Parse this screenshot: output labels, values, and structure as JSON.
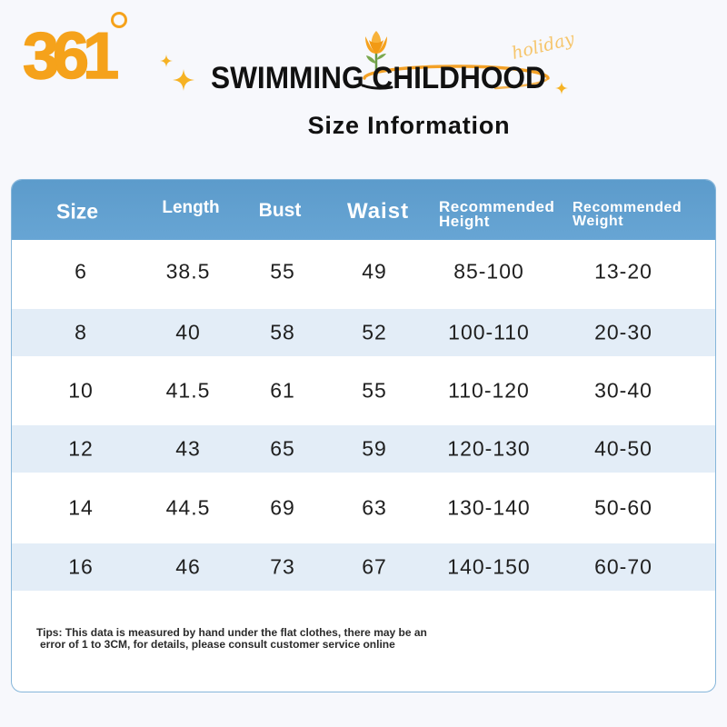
{
  "brand": {
    "logo_text": "361"
  },
  "banner": {
    "title": "SWIMMING CHILDHOOD",
    "script_word": "holiday",
    "icons": [
      "sparkle-icon",
      "flower-icon"
    ]
  },
  "page_title": "Size Information",
  "size_table": {
    "columns": [
      "Size",
      "Length",
      "Bust",
      "Waist",
      "Recommended Height",
      "Recommended Weight"
    ],
    "rows": [
      [
        "6",
        "38.5",
        "55",
        "49",
        "85-100",
        "13-20"
      ],
      [
        "8",
        "40",
        "58",
        "52",
        "100-110",
        "20-30"
      ],
      [
        "10",
        "41.5",
        "61",
        "55",
        "110-120",
        "30-40"
      ],
      [
        "12",
        "43",
        "65",
        "59",
        "120-130",
        "40-50"
      ],
      [
        "14",
        "44.5",
        "69",
        "63",
        "130-140",
        "50-60"
      ],
      [
        "16",
        "46",
        "73",
        "67",
        "140-150",
        "60-70"
      ]
    ]
  },
  "tips": [
    "Tips: This data is measured by hand under the flat clothes, there may be an",
    "error of 1 to 3CM, for details, please consult customer service online"
  ],
  "colors": {
    "brand_orange": "#f5a21b",
    "header_blue": "#5e9dcc",
    "stripe_blue": "#e3edf7",
    "border_blue": "#86b6da",
    "text": "#1f1f1f"
  }
}
